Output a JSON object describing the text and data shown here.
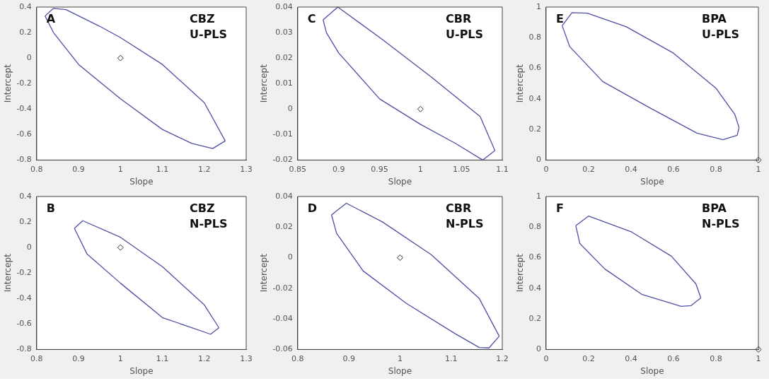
{
  "chart_data": [
    {
      "type": "line",
      "xlabel": "Slope",
      "ylabel": "Intercept",
      "xlim": [
        0.8,
        1.3
      ],
      "ylim": [
        -0.8,
        0.4
      ],
      "xticks": [
        0.8,
        0.9,
        1,
        1.1,
        1.2,
        1.3
      ],
      "yticks": [
        -0.8,
        -0.6,
        -0.4,
        -0.2,
        0,
        0.2,
        0.4
      ],
      "grid": false,
      "legend": false,
      "annotations": [
        "A",
        "CBZ\nU-PLS"
      ],
      "series": [
        {
          "color": "#4f4fa3",
          "marker": "none",
          "x": [
            0.82,
            0.84,
            0.87,
            0.95,
            1.0,
            1.1,
            1.2,
            1.25
          ],
          "values": [
            0.33,
            0.39,
            0.38,
            0.25,
            0.16,
            -0.05,
            -0.35,
            -0.65
          ]
        },
        {
          "color": "#4f4fa3",
          "marker": "none",
          "x": [
            0.82,
            0.84,
            0.9,
            1.0,
            1.1,
            1.17,
            1.22,
            1.25
          ],
          "values": [
            0.33,
            0.2,
            -0.05,
            -0.32,
            -0.56,
            -0.67,
            -0.71,
            -0.65
          ]
        },
        {
          "type": "scatter",
          "color": "#333333",
          "marker": "diamond",
          "x": [
            1
          ],
          "values": [
            0
          ]
        }
      ]
    },
    {
      "type": "line",
      "xlabel": "Slope",
      "ylabel": "Intercept",
      "xlim": [
        0.85,
        1.1
      ],
      "ylim": [
        -0.02,
        0.04
      ],
      "xticks": [
        0.85,
        0.9,
        0.95,
        1,
        1.05,
        1.1
      ],
      "yticks": [
        -0.02,
        -0.01,
        0,
        0.01,
        0.02,
        0.03,
        0.04
      ],
      "grid": false,
      "legend": false,
      "annotations": [
        "C",
        "CBR\nU-PLS"
      ],
      "series": [
        {
          "color": "#4f4fa3",
          "marker": "none",
          "x": [
            0.881,
            0.899,
            0.953,
            1.013,
            1.073,
            1.091
          ],
          "values": [
            0.035,
            0.04,
            0.0274,
            0.0126,
            -0.003,
            -0.0163
          ]
        },
        {
          "color": "#4f4fa3",
          "marker": "none",
          "x": [
            0.881,
            0.885,
            0.9,
            0.95,
            1.0,
            1.043,
            1.076,
            1.091
          ],
          "values": [
            0.035,
            0.03,
            0.022,
            0.004,
            -0.006,
            -0.0135,
            -0.02,
            -0.0163
          ]
        },
        {
          "type": "scatter",
          "color": "#333333",
          "marker": "diamond",
          "x": [
            1
          ],
          "values": [
            0
          ]
        }
      ]
    },
    {
      "type": "line",
      "xlabel": "Slope",
      "ylabel": "Intercept",
      "xlim": [
        0,
        1
      ],
      "ylim": [
        0,
        1
      ],
      "xticks": [
        0,
        0.2,
        0.4,
        0.6,
        0.8,
        1
      ],
      "yticks": [
        0,
        0.2,
        0.4,
        0.6,
        0.8,
        1
      ],
      "grid": false,
      "legend": false,
      "annotations": [
        "E",
        "BPA\nU-PLS"
      ],
      "series": [
        {
          "color": "#4f4fa3",
          "marker": "none",
          "x": [
            0.076,
            0.122,
            0.194,
            0.378,
            0.6,
            0.8,
            0.889,
            0.909
          ],
          "values": [
            0.878,
            0.964,
            0.96,
            0.871,
            0.699,
            0.47,
            0.298,
            0.212
          ]
        },
        {
          "color": "#4f4fa3",
          "marker": "none",
          "x": [
            0.076,
            0.111,
            0.267,
            0.489,
            0.711,
            0.833,
            0.9,
            0.909
          ],
          "values": [
            0.878,
            0.742,
            0.513,
            0.341,
            0.176,
            0.133,
            0.162,
            0.212
          ]
        },
        {
          "type": "scatter",
          "color": "#333333",
          "marker": "diamond",
          "x": [
            1
          ],
          "values": [
            0
          ]
        }
      ]
    },
    {
      "type": "line",
      "xlabel": "Slope",
      "ylabel": "Intercept",
      "xlim": [
        0.8,
        1.3
      ],
      "ylim": [
        -0.8,
        0.4
      ],
      "xticks": [
        0.8,
        0.9,
        1,
        1.1,
        1.2,
        1.3
      ],
      "yticks": [
        -0.8,
        -0.6,
        -0.4,
        -0.2,
        0,
        0.2,
        0.4
      ],
      "grid": false,
      "legend": false,
      "annotations": [
        "B",
        "CBZ\nN-PLS"
      ],
      "series": [
        {
          "color": "#4f4fa3",
          "marker": "none",
          "x": [
            0.89,
            0.91,
            1.0,
            1.1,
            1.2,
            1.235
          ],
          "values": [
            0.15,
            0.21,
            0.08,
            -0.15,
            -0.45,
            -0.63
          ]
        },
        {
          "color": "#4f4fa3",
          "marker": "none",
          "x": [
            0.89,
            0.92,
            1.0,
            1.1,
            1.215,
            1.235
          ],
          "values": [
            0.15,
            -0.05,
            -0.28,
            -0.55,
            -0.68,
            -0.63
          ]
        },
        {
          "type": "scatter",
          "color": "#333333",
          "marker": "diamond",
          "x": [
            1
          ],
          "values": [
            0
          ]
        }
      ]
    },
    {
      "type": "line",
      "xlabel": "Slope",
      "ylabel": "Intercept",
      "xlim": [
        0.8,
        1.2
      ],
      "ylim": [
        -0.06,
        0.04
      ],
      "xticks": [
        0.8,
        0.9,
        1,
        1.1,
        1.2
      ],
      "yticks": [
        -0.06,
        -0.04,
        -0.02,
        0,
        0.02,
        0.04
      ],
      "grid": false,
      "legend": false,
      "annotations": [
        "D",
        "CBR\nN-PLS"
      ],
      "series": [
        {
          "color": "#4f4fa3",
          "marker": "none",
          "x": [
            0.866,
            0.895,
            0.966,
            1.061,
            1.155,
            1.194
          ],
          "values": [
            0.028,
            0.0356,
            0.0233,
            0.002,
            -0.0267,
            -0.0513
          ]
        },
        {
          "color": "#4f4fa3",
          "marker": "none",
          "x": [
            0.866,
            0.876,
            0.928,
            1.013,
            1.108,
            1.155,
            1.174,
            1.194
          ],
          "values": [
            0.028,
            0.0159,
            -0.0087,
            -0.03,
            -0.0497,
            -0.0587,
            -0.059,
            -0.0513
          ]
        },
        {
          "type": "scatter",
          "color": "#333333",
          "marker": "diamond",
          "x": [
            1
          ],
          "values": [
            0
          ]
        }
      ]
    },
    {
      "type": "line",
      "xlabel": "Slope",
      "ylabel": "Intercept",
      "xlim": [
        0,
        1
      ],
      "ylim": [
        0,
        1
      ],
      "xticks": [
        0,
        0.2,
        0.4,
        0.6,
        0.8,
        1
      ],
      "yticks": [
        0,
        0.2,
        0.4,
        0.6,
        0.8,
        1
      ],
      "grid": false,
      "legend": false,
      "annotations": [
        "F",
        "BPA\nN-PLS"
      ],
      "series": [
        {
          "color": "#4f4fa3",
          "marker": "none",
          "x": [
            0.14,
            0.2,
            0.403,
            0.59,
            0.706,
            0.729
          ],
          "values": [
            0.809,
            0.872,
            0.768,
            0.61,
            0.428,
            0.337
          ]
        },
        {
          "color": "#4f4fa3",
          "marker": "none",
          "x": [
            0.14,
            0.159,
            0.276,
            0.45,
            0.636,
            0.683,
            0.729
          ],
          "values": [
            0.809,
            0.693,
            0.527,
            0.361,
            0.282,
            0.287,
            0.337
          ]
        },
        {
          "type": "scatter",
          "color": "#333333",
          "marker": "diamond",
          "x": [
            1
          ],
          "values": [
            0
          ]
        }
      ]
    }
  ]
}
